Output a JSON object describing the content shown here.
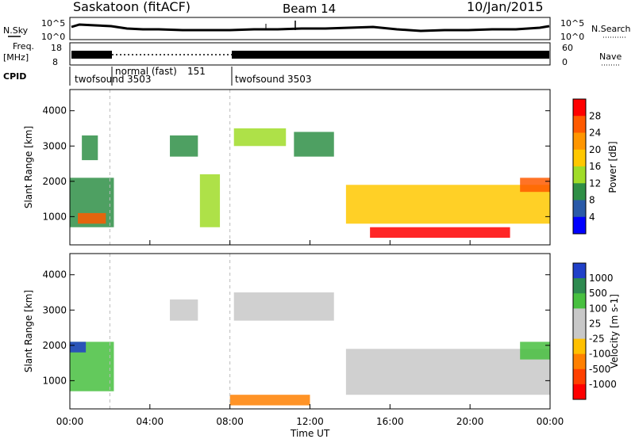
{
  "header": {
    "station": "Saskatoon (fitACF)",
    "beam": "Beam 14",
    "date": "10/Jan/2015"
  },
  "strip": {
    "nsky_label": "N.Sky",
    "nsky_ticks": [
      "10^5",
      "10^0"
    ],
    "nsearch_label": "N.Search",
    "nsearch_ticks": [
      "10^5",
      "10^0"
    ],
    "freq_label": "Freq.",
    "freq_unit": "[MHz]",
    "freq_ticks": [
      "18",
      "8"
    ],
    "nave_label": "Nave",
    "nave_ticks": [
      "60",
      "0"
    ],
    "cpid_label": "CPID",
    "cpid_segments": [
      {
        "name": "twofsound",
        "id": "3503",
        "start_h": 0.0,
        "end_h": 2.0
      },
      {
        "name": "normal (fast)",
        "id": "151",
        "start_h": 2.0,
        "end_h": 8.0
      },
      {
        "name": "twofsound",
        "id": "3503",
        "start_h": 8.0,
        "end_h": 24.0
      }
    ]
  },
  "panels": {
    "power": {
      "ylabel": "Slant Range [km]",
      "colorbar_label": "Power [dB]",
      "colorbar_ticks": [
        "28",
        "24",
        "20",
        "16",
        "12",
        "8",
        "4"
      ],
      "colors": [
        "#ff0000",
        "#ff5a00",
        "#ff9600",
        "#ffc800",
        "#a0dc28",
        "#2f8f46",
        "#2a5aa8",
        "#0000ff"
      ]
    },
    "velocity": {
      "ylabel": "Slant Range [km]",
      "colorbar_label": "Velocity [m s-1]",
      "colorbar_ticks": [
        "1000",
        "500",
        "100",
        "25",
        "-25",
        "-100",
        "-500",
        "-1000"
      ],
      "colors": [
        "#2040c8",
        "#2e8a50",
        "#48c040",
        "#c8c8c8",
        "#c8c8c8",
        "#ffc000",
        "#ff8000",
        "#ff4000",
        "#ff0000"
      ]
    }
  },
  "x_axis": {
    "label": "Time UT",
    "ticks": [
      "00:00",
      "04:00",
      "08:00",
      "12:00",
      "16:00",
      "20:00",
      "00:00"
    ]
  },
  "chart_data": [
    {
      "type": "heatmap",
      "title": "Saskatoon (fitACF)   Beam 14   10/Jan/2015",
      "variable": "Power",
      "units": "dB",
      "xlabel": "Time UT",
      "ylabel": "Slant Range [km]",
      "xlim_hours": [
        0,
        24
      ],
      "ylim_km": [
        200,
        4600
      ],
      "y_ticks": [
        1000,
        2000,
        3000,
        4000
      ],
      "color_levels_db": [
        4,
        8,
        12,
        16,
        20,
        24,
        28
      ],
      "regions": [
        {
          "t": [
            0.0,
            2.2
          ],
          "r": [
            700,
            2100
          ],
          "level_db": 10
        },
        {
          "t": [
            0.4,
            1.8
          ],
          "r": [
            800,
            1100
          ],
          "level_db": 24
        },
        {
          "t": [
            0.6,
            1.4
          ],
          "r": [
            2600,
            3300
          ],
          "level_db": 8
        },
        {
          "t": [
            5.0,
            6.4
          ],
          "r": [
            2700,
            3300
          ],
          "level_db": 8
        },
        {
          "t": [
            6.5,
            7.5
          ],
          "r": [
            700,
            2200
          ],
          "level_db": 12
        },
        {
          "t": [
            8.2,
            10.8
          ],
          "r": [
            3000,
            3500
          ],
          "level_db": 12
        },
        {
          "t": [
            11.2,
            13.2
          ],
          "r": [
            2700,
            3400
          ],
          "level_db": 10
        },
        {
          "t": [
            13.8,
            24.0
          ],
          "r": [
            800,
            1900
          ],
          "level_db": 16
        },
        {
          "t": [
            15.0,
            22.0
          ],
          "r": [
            400,
            700
          ],
          "level_db": 28
        },
        {
          "t": [
            22.5,
            24.0
          ],
          "r": [
            1700,
            2100
          ],
          "level_db": 24
        }
      ]
    },
    {
      "type": "heatmap",
      "variable": "Velocity",
      "units": "m s-1",
      "xlabel": "Time UT",
      "ylabel": "Slant Range [km]",
      "xlim_hours": [
        0,
        24
      ],
      "ylim_km": [
        200,
        4600
      ],
      "y_ticks": [
        1000,
        2000,
        3000,
        4000
      ],
      "color_levels_ms": [
        -1000,
        -500,
        -100,
        -25,
        25,
        100,
        500,
        1000
      ],
      "regions": [
        {
          "t": [
            0.0,
            2.2
          ],
          "r": [
            700,
            2100
          ],
          "v_ms": 100
        },
        {
          "t": [
            0.0,
            0.8
          ],
          "r": [
            1800,
            2100
          ],
          "v_ms": 1000
        },
        {
          "t": [
            5.0,
            6.4
          ],
          "r": [
            2700,
            3300
          ],
          "v_ms": 0
        },
        {
          "t": [
            8.2,
            13.2
          ],
          "r": [
            2700,
            3500
          ],
          "v_ms": 0
        },
        {
          "t": [
            8.0,
            12.0
          ],
          "r": [
            300,
            600
          ],
          "v_ms": -300
        },
        {
          "t": [
            13.8,
            24.0
          ],
          "r": [
            600,
            1900
          ],
          "v_ms": 0
        },
        {
          "t": [
            22.5,
            24.0
          ],
          "r": [
            1600,
            2100
          ],
          "v_ms": 150
        }
      ]
    }
  ]
}
